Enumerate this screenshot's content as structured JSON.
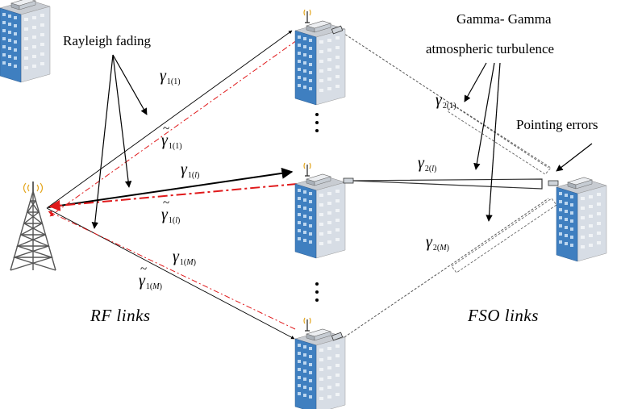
{
  "labels": {
    "rayleigh": "Rayleigh fading",
    "gamma_line1": "Gamma- Gamma",
    "gamma_line2": "atmospheric turbulence",
    "pointing": "Pointing errors",
    "rf_links": "RF  links",
    "fso_links": "FSO  links"
  },
  "symbols": {
    "gamma": "γ",
    "g11_sub": "1(1)",
    "g1l_pre": "1(",
    "g1l_var": "l",
    "g1l_post": ")",
    "g1m_pre": "1(",
    "g1m_var": "M",
    "g1m_post": ")",
    "g21_sub": "2(1)",
    "g2l_pre": "2(",
    "g2l_var": "l",
    "g2l_post": ")",
    "g2m_pre": "2(",
    "g2m_var": "M",
    "g2m_post": ")"
  },
  "colors": {
    "rf_forward": "#000000",
    "rf_feedback": "#e0191b",
    "building_face": "#3f7fc0",
    "building_side": "#d7dde5",
    "window": "#bcd6ef"
  },
  "icons": {
    "base_station": "cell-tower-icon",
    "relay": "building-with-antenna-icon",
    "destination": "building-icon"
  }
}
